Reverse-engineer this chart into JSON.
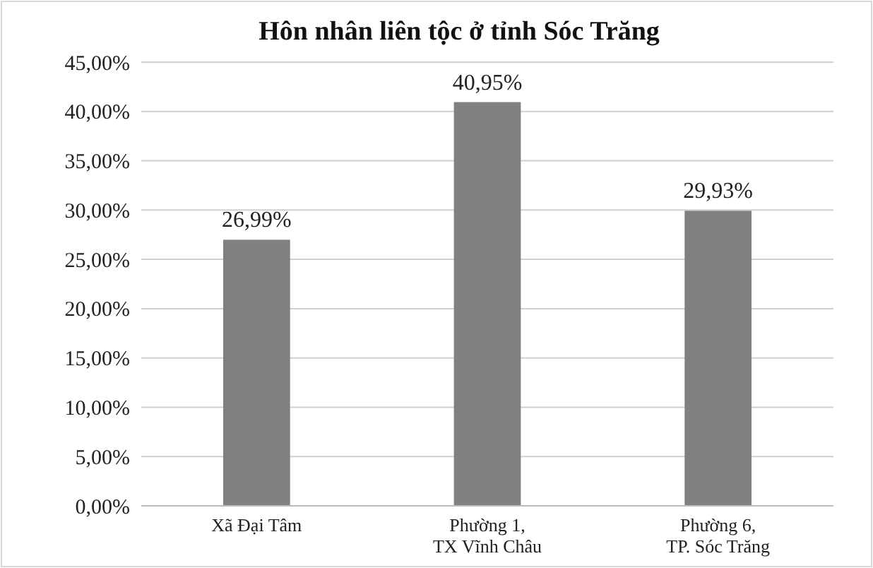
{
  "chart_data": {
    "type": "bar",
    "title": "Hôn nhân liên tộc ở tỉnh Sóc Trăng",
    "categories": [
      "Xã Đại Tâm",
      "Phường 1,\nTX Vĩnh Châu",
      "Phường 6,\nTP. Sóc Trăng"
    ],
    "values": [
      26.99,
      40.95,
      29.93
    ],
    "color": "#808080",
    "value_labels": [
      "26,99%",
      "40,95%",
      "29,93%"
    ],
    "ylim": [
      0,
      45
    ],
    "yticks": [
      {
        "value": 0,
        "label": "0,00%"
      },
      {
        "value": 5,
        "label": "5,00%"
      },
      {
        "value": 10,
        "label": "10,00%"
      },
      {
        "value": 15,
        "label": "15,00%"
      },
      {
        "value": 20,
        "label": "20,00%"
      },
      {
        "value": 25,
        "label": "25,00%"
      },
      {
        "value": 30,
        "label": "30,00%"
      },
      {
        "value": 35,
        "label": "35,00%"
      },
      {
        "value": 40,
        "label": "40,00%"
      },
      {
        "value": 45,
        "label": "45,00%"
      }
    ],
    "grid": "y"
  }
}
